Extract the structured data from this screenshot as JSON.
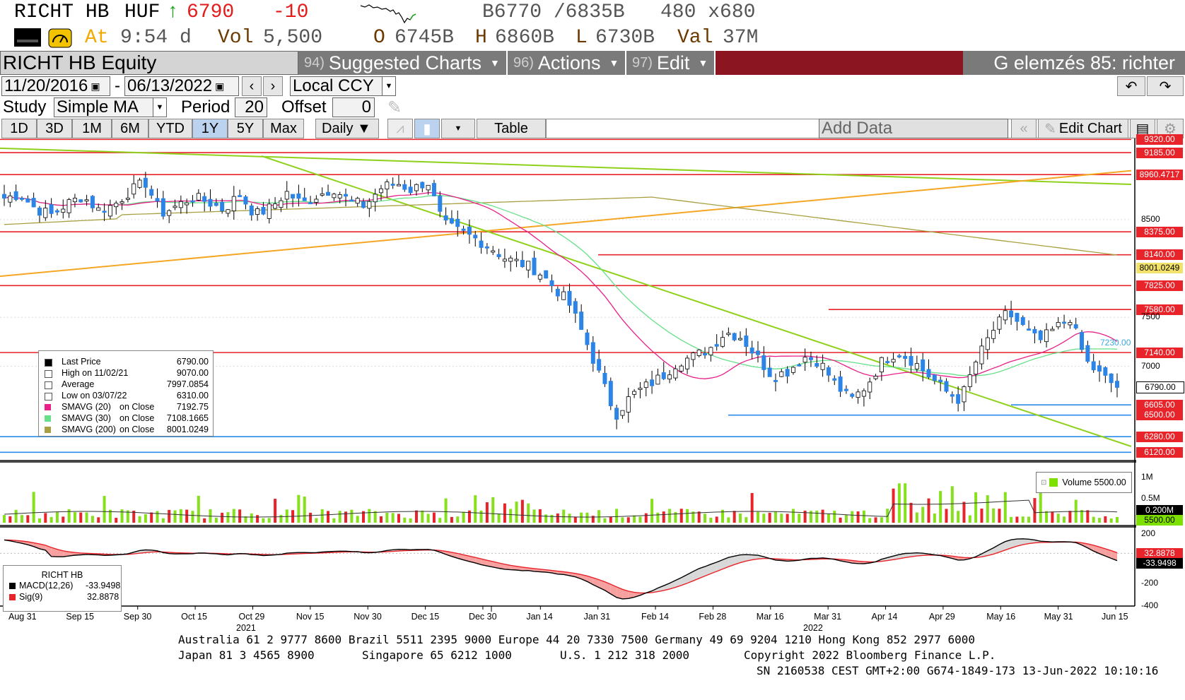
{
  "header": {
    "ticker": "RICHT HB",
    "currency": "HUF",
    "arrow": "↑",
    "last": "6790",
    "change": "-10",
    "bid_ask": "B6770 /6835B",
    "size": "480 x680",
    "at_label": "At",
    "time": "9:54 d",
    "vol_label": "Vol",
    "vol": "5,500",
    "open_label": "O",
    "open": "6745B",
    "high_label": "H",
    "high": "6860B",
    "low_label": "L",
    "low": "6730B",
    "val_label": "Val",
    "val": "37M"
  },
  "toolbar": {
    "security": "RICHT HB Equity",
    "menus": [
      {
        "num": "94)",
        "label": "Suggested Charts"
      },
      {
        "num": "96)",
        "label": "Actions"
      },
      {
        "num": "97)",
        "label": "Edit"
      }
    ],
    "analysis_title": "G elemzés 85: richter",
    "start_date": "11/20/2016",
    "date_sep": "-",
    "end_date": "06/13/2022",
    "currency_mode": "Local CCY",
    "study_label": "Study",
    "study_value": "Simple MA",
    "period_label": "Period",
    "period_value": "20",
    "offset_label": "Offset",
    "offset_value": "0",
    "ranges": [
      "1D",
      "3D",
      "1M",
      "6M",
      "YTD",
      "1Y",
      "5Y",
      "Max"
    ],
    "selected_range": "1Y",
    "frequency": "Daily ▼",
    "table_label": "Table",
    "add_data_placeholder": "Add Data",
    "edit_chart_label": "Edit Chart",
    "accent": "#8b1520"
  },
  "chart_data": [
    {
      "type": "candlestick",
      "title": "RICHT HB",
      "y_range": [
        6050,
        9330
      ],
      "x_axis_labels": [
        "Aug 31",
        "Sep 15",
        "Sep 30",
        "Oct 15",
        "Oct 29",
        "Nov 15",
        "Nov 30",
        "Dec 15",
        "Dec 30",
        "Jan 14",
        "Jan 31",
        "Feb 14",
        "Feb 28",
        "Mar 16",
        "Mar 31",
        "Apr 14",
        "Apr 29",
        "May 16",
        "May 31",
        "Jun 15"
      ],
      "year_labels": [
        "2021",
        "2022"
      ],
      "y_ticks": [
        "8500",
        "7500",
        "7000"
      ],
      "horizontal_levels": [
        {
          "value": "9320.00",
          "color": "#e8232a"
        },
        {
          "value": "9185.00",
          "color": "#e8232a"
        },
        {
          "value": "8960.4717",
          "color": "#e8232a"
        },
        {
          "value": "8375.00",
          "color": "#e8232a"
        },
        {
          "value": "8140.00",
          "color": "#e8232a"
        },
        {
          "value": "8001.0249",
          "color": "#a8a040"
        },
        {
          "value": "7825.00",
          "color": "#e8232a"
        },
        {
          "value": "7580.00",
          "color": "#e8232a"
        },
        {
          "value": "7140.00",
          "color": "#e8232a"
        },
        {
          "value": "6790.00",
          "color": "#000000"
        },
        {
          "value": "6605.00",
          "color": "#2a8be8"
        },
        {
          "value": "6500.00",
          "color": "#2a8be8"
        },
        {
          "value": "6280.00",
          "color": "#2a8be8"
        },
        {
          "value": "6120.00",
          "color": "#2a8be8"
        }
      ],
      "annotation": "7230.00",
      "series": [
        {
          "name": "SMAVG (20) on Close",
          "color": "#e8208a"
        },
        {
          "name": "SMAVG (30) on Close",
          "color": "#66e08a"
        },
        {
          "name": "SMAVG (200) on Close",
          "color": "#a8a040"
        }
      ],
      "closes_anchor": [
        8720,
        8760,
        8610,
        8550,
        8660,
        8740,
        8600,
        8650,
        8790,
        8880,
        8560,
        8640,
        8730,
        8680,
        8600,
        8760,
        8550,
        8620,
        8780,
        8660,
        8750,
        8820,
        8690,
        8640,
        8820,
        8880,
        8800,
        8900,
        8450,
        8380,
        8310,
        8220,
        8100,
        8050,
        7980,
        7820,
        7650,
        7300,
        6900,
        6500,
        6700,
        6800,
        6900,
        7050,
        7100,
        7180,
        7350,
        7300,
        7100,
        6900,
        6950,
        7100,
        7050,
        6820,
        6650,
        6800,
        7050,
        7150,
        7050,
        6900,
        6750,
        6650,
        7050,
        7350,
        7550,
        7400,
        7250,
        7380,
        7500,
        7050,
        6900,
        6790
      ]
    },
    {
      "type": "bar",
      "title": "Volume",
      "legend": "Volume 5500.00",
      "y_ticks": [
        "1M",
        "0.5M"
      ],
      "last_labels": [
        "0.200M",
        "5500.00"
      ]
    },
    {
      "type": "line",
      "title": "RICHT HB",
      "y_ticks": [
        "200",
        "-200",
        "-400"
      ],
      "last_labels": [
        "32.8878",
        "-33.9498"
      ],
      "series": [
        {
          "name": "MACD(12,26)",
          "value": "-33.9498",
          "color": "#000000"
        },
        {
          "name": "Sig(9)",
          "value": "32.8878",
          "color": "#e8232a"
        }
      ]
    }
  ],
  "legend": {
    "rows": [
      {
        "key": "Last Price",
        "value": "6790.00",
        "icon": "square-icon"
      },
      {
        "key": "High on 11/02/21",
        "value": "9070.00",
        "icon": "high-marker-icon"
      },
      {
        "key": "Average",
        "value": "7997.0854",
        "icon": "average-icon"
      },
      {
        "key": "Low on 03/07/22",
        "value": "6310.00",
        "icon": "low-marker-icon"
      },
      {
        "key": "SMAVG (20)",
        "on": "on Close",
        "value": "7192.75",
        "color": "#e8208a"
      },
      {
        "key": "SMAVG (30)",
        "on": "on Close",
        "value": "7108.1665",
        "color": "#66e08a"
      },
      {
        "key": "SMAVG (200)",
        "on": "on Close",
        "value": "8001.0249",
        "color": "#a8a040"
      }
    ]
  },
  "footer": {
    "line1": "Australia 61 2 9777 8600 Brazil 5511 2395 9000 Europe 44 20 7330 7500 Germany 49 69 9204 1210 Hong Kong 852 2977 6000",
    "line2a": "Japan 81 3 4565 8900",
    "line2b": "Singapore 65 6212 1000",
    "line2c": "U.S. 1 212 318 2000",
    "line2d": "Copyright 2022 Bloomberg Finance L.P.",
    "line3": "SN 2160538 CEST GMT+2:00 G674-1849-173 13-Jun-2022 10:10:16"
  }
}
